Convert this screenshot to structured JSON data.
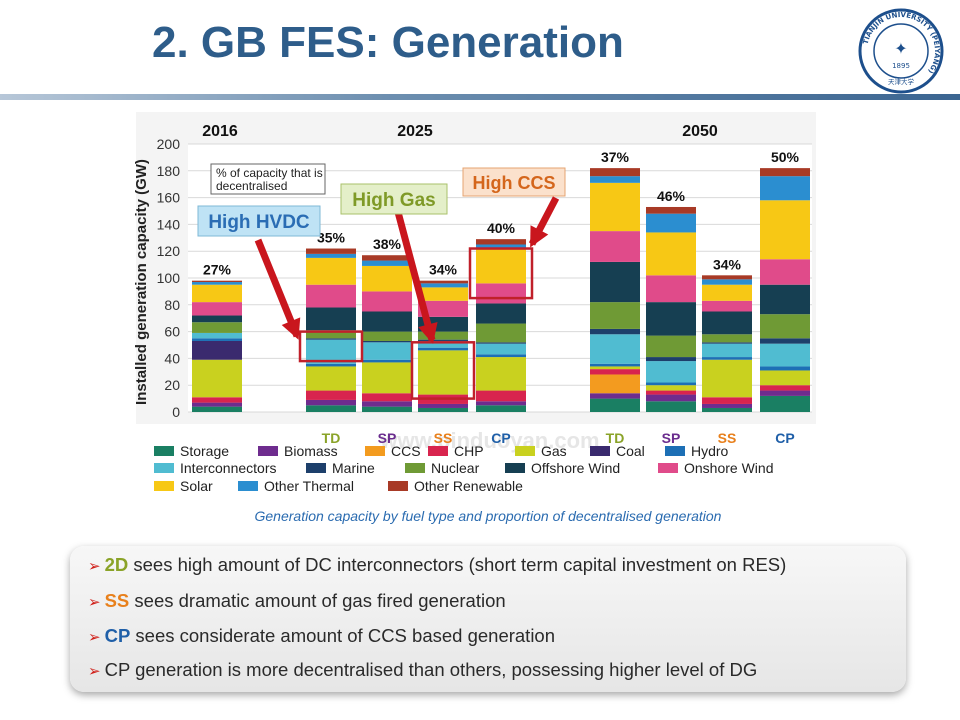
{
  "slide": {
    "title": "2. GB FES: Generation",
    "caption": "Generation  capacity by fuel type and proportion of decentralised generation",
    "logo": {
      "ring_text": "TIANJIN UNIVERSITY (PEIYANG)",
      "year": "1895",
      "motto": "天津大学"
    },
    "watermark": "www.pinduoyan.com"
  },
  "colors": {
    "Storage": "#1a7f63",
    "Biomass": "#6e2c8e",
    "CCS": "#f39b1f",
    "CHP": "#d8244e",
    "Gas": "#c9d11f",
    "Coal": "#3a2a6e",
    "Hydro": "#1d6fb5",
    "Interconnectors": "#50bcd1",
    "Marine": "#1d3f6b",
    "Nuclear": "#6f9a35",
    "Offshore Wind": "#163f52",
    "Onshore Wind": "#e04b8a",
    "Solar": "#f7c815",
    "Other Thermal": "#2b8ed0",
    "Other Renewable": "#a83a26",
    "label_orange": "#e8801c",
    "label_purple": "#6a2c8e",
    "label_olive": "#8aa328",
    "label_blue": "#1f5fa8",
    "highlight": "#c0202a"
  },
  "chart_data": {
    "type": "bar",
    "stacked": true,
    "title": "",
    "xlabel": "",
    "ylabel": "Installed generation capacity (GW)",
    "ylim": [
      0,
      200
    ],
    "yticks": [
      "0",
      "20",
      "40",
      "60",
      "80",
      "100",
      "120",
      "140",
      "160",
      "180",
      "200"
    ],
    "year_labels": [
      "2016",
      "2025",
      "2050"
    ],
    "categories": [
      "2016",
      "TD",
      "SP",
      "SS",
      "CP",
      "TD",
      "SP",
      "SS",
      "CP"
    ],
    "category_colors": [
      "",
      "label_olive",
      "label_purple",
      "label_orange",
      "label_blue",
      "label_olive",
      "label_purple",
      "label_orange",
      "label_blue"
    ],
    "decentralised_pct": [
      "27%",
      "35%",
      "38%",
      "34%",
      "40%",
      "37%",
      "46%",
      "34%",
      "50%"
    ],
    "note": "% of capacity that is decentralised",
    "series": [
      {
        "name": "Storage",
        "values": [
          4,
          5,
          4,
          3,
          5,
          10,
          8,
          3,
          12
        ]
      },
      {
        "name": "Biomass",
        "values": [
          3,
          4,
          4,
          3,
          3,
          4,
          5,
          3,
          4
        ]
      },
      {
        "name": "CCS",
        "values": [
          0,
          0,
          0,
          0,
          0,
          14,
          0,
          0,
          0
        ]
      },
      {
        "name": "CHP",
        "values": [
          4,
          7,
          6,
          7,
          8,
          4,
          3,
          5,
          4
        ]
      },
      {
        "name": "Gas",
        "values": [
          28,
          18,
          23,
          33,
          25,
          2,
          4,
          28,
          11
        ]
      },
      {
        "name": "Coal",
        "values": [
          14,
          0,
          0,
          0,
          0,
          0,
          0,
          0,
          0
        ]
      },
      {
        "name": "Hydro",
        "values": [
          2,
          2,
          2,
          2,
          2,
          2,
          2,
          2,
          3
        ]
      },
      {
        "name": "Interconnectors",
        "values": [
          4,
          18,
          13,
          5,
          8,
          22,
          16,
          10,
          17
        ]
      },
      {
        "name": "Marine",
        "values": [
          0,
          1,
          1,
          1,
          1,
          4,
          3,
          1,
          4
        ]
      },
      {
        "name": "Nuclear",
        "values": [
          8,
          6,
          7,
          6,
          14,
          20,
          16,
          6,
          18
        ]
      },
      {
        "name": "Offshore Wind",
        "values": [
          5,
          17,
          15,
          11,
          15,
          30,
          25,
          17,
          22
        ]
      },
      {
        "name": "Onshore Wind",
        "values": [
          10,
          17,
          15,
          12,
          15,
          23,
          20,
          8,
          19
        ]
      },
      {
        "name": "Solar",
        "values": [
          13,
          20,
          19,
          10,
          26,
          36,
          32,
          12,
          44
        ]
      },
      {
        "name": "Other Thermal",
        "values": [
          2,
          3,
          4,
          3,
          3,
          5,
          14,
          4,
          18
        ]
      },
      {
        "name": "Other Renewable",
        "values": [
          1,
          4,
          4,
          2,
          4,
          6,
          5,
          3,
          6
        ]
      }
    ],
    "legend": [
      [
        "Storage",
        "Biomass",
        "CCS",
        "CHP",
        "Gas",
        "Coal",
        "Hydro"
      ],
      [
        "Interconnectors",
        "Marine",
        "Nuclear",
        "Offshore Wind",
        "Onshore Wind"
      ],
      [
        "Solar",
        "Other Thermal",
        "Other Renewable"
      ]
    ],
    "annotations": [
      {
        "text": "High HVDC",
        "target_bar": 1,
        "range": [
          38,
          60
        ]
      },
      {
        "text": "High Gas",
        "target_bar": 3,
        "range": [
          10,
          52
        ]
      },
      {
        "text": "High CCS",
        "target_bar": 4,
        "range": [
          85,
          122
        ]
      }
    ]
  },
  "bullets": [
    {
      "keyword": "2D",
      "keyword_color": "label_olive",
      "text": " sees high amount  of  DC interconnectors  (short term capital investment  on RES)"
    },
    {
      "keyword": "SS",
      "keyword_color": "label_orange",
      "text": " sees dramatic amount  of gas fired generation"
    },
    {
      "keyword": "CP",
      "keyword_color": "label_blue",
      "text": " sees considerate amount of CCS based generation"
    },
    {
      "keyword": "",
      "keyword_color": "",
      "text": "CP generation is more decentralised than others, possessing higher level of DG"
    }
  ]
}
